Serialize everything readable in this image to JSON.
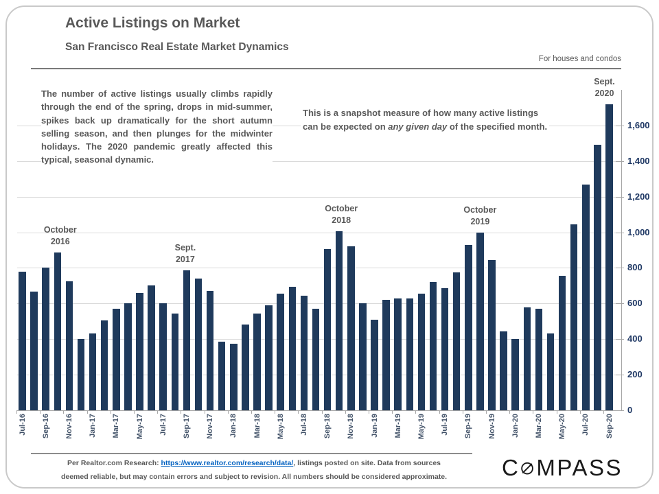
{
  "page": {
    "title": "Active Listings on Market",
    "subtitle": "San Francisco Real Estate Market Dynamics",
    "scope_note": "For houses and condos"
  },
  "commentary": {
    "paragraph": "The number of active listings usually climbs rapidly through the end of the spring, drops in mid-summer, spikes back up dramatically for the short autumn selling season, and then plunges for the midwinter holidays. The 2020 pandemic greatly affected this typical, seasonal dynamic.",
    "snapshot_line1": "This is a snapshot measure of how many active listings",
    "snapshot_line2_pre": "can be expected on ",
    "snapshot_line2_italic": "any given day",
    "snapshot_line2_post": " of the specified month."
  },
  "chart_data": {
    "type": "bar",
    "title": "Active Listings on Market",
    "xlabel": "",
    "ylabel": "",
    "ylim": [
      0,
      1800
    ],
    "grid": "horizontal",
    "legend": "none",
    "bar_color": "#1f3a5c",
    "y_ticks": [
      0,
      200,
      400,
      600,
      800,
      1000,
      1200,
      1400,
      1600
    ],
    "y_tick_labels": [
      "0",
      "200",
      "400",
      "600",
      "800",
      "1,000",
      "1,200",
      "1,400",
      "1,600"
    ],
    "x_label_every": 2,
    "categories": [
      "Jul-16",
      "Aug-16",
      "Sep-16",
      "Oct-16",
      "Nov-16",
      "Dec-16",
      "Jan-17",
      "Feb-17",
      "Mar-17",
      "Apr-17",
      "May-17",
      "Jun-17",
      "Jul-17",
      "Aug-17",
      "Sep-17",
      "Oct-17",
      "Nov-17",
      "Dec-17",
      "Jan-18",
      "Feb-18",
      "Mar-18",
      "Apr-18",
      "May-18",
      "Jun-18",
      "Jul-18",
      "Aug-18",
      "Sep-18",
      "Oct-18",
      "Nov-18",
      "Dec-18",
      "Jan-19",
      "Feb-19",
      "Mar-19",
      "Apr-19",
      "May-19",
      "Jun-19",
      "Jul-19",
      "Aug-19",
      "Sep-19",
      "Oct-19",
      "Nov-19",
      "Dec-19",
      "Jan-20",
      "Feb-20",
      "Mar-20",
      "Apr-20",
      "May-20",
      "Jun-20",
      "Jul-20",
      "Aug-20",
      "Sep-20"
    ],
    "values": [
      780,
      665,
      800,
      885,
      725,
      400,
      430,
      505,
      570,
      600,
      660,
      700,
      600,
      545,
      785,
      740,
      670,
      385,
      375,
      480,
      545,
      590,
      655,
      695,
      645,
      570,
      905,
      1005,
      920,
      600,
      510,
      620,
      630,
      630,
      655,
      720,
      685,
      775,
      930,
      1000,
      845,
      445,
      400,
      580,
      570,
      430,
      755,
      1045,
      1270,
      1490,
      1720
    ],
    "annotations": [
      {
        "line1": "October",
        "line2": "2016",
        "category": "Oct-16",
        "index": 3,
        "dx": 4
      },
      {
        "line1": "Sept.",
        "line2": "2017",
        "category": "Sep-17",
        "index": 14,
        "dx": -2
      },
      {
        "line1": "October",
        "line2": "2018",
        "category": "Oct-18",
        "index": 27,
        "dx": 3
      },
      {
        "line1": "October",
        "line2": "2019",
        "category": "Oct-19",
        "index": 39,
        "dx": 0
      },
      {
        "line1": "Sept.",
        "line2": "2020",
        "category": "Sep-20",
        "index": 50,
        "dx": -7
      }
    ]
  },
  "footer": {
    "line1_prefix": "Per Realtor.com Research:  ",
    "link_text": "https://www.realtor.com/research/data/",
    "line1_suffix": ", listings posted on site. Data from sources",
    "line2": "deemed reliable, but may contain errors and subject to revision.  All numbers should be considered approximate."
  },
  "logo": {
    "prefix": "C",
    "suffix": "MPASS",
    "o_icon": "compass-slashed-o-icon",
    "color": "#1a1a1a"
  }
}
